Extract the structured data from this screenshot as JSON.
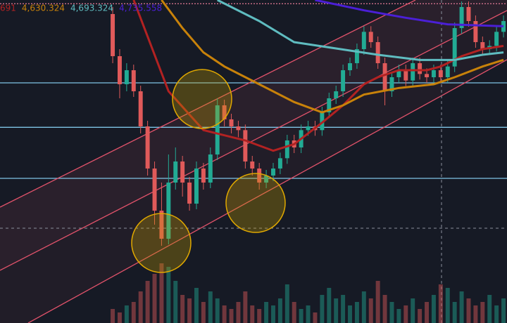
{
  "chart_data": {
    "type": "candlestick",
    "xlim": [
      -16.15,
      56.5
    ],
    "ylim": [
      4200,
      4890
    ],
    "vlim": [
      0,
      100
    ],
    "up_color": "#22ab94",
    "down_color": "#e05a5a",
    "candles": [
      [
        4860,
        4875,
        4755,
        4770
      ],
      [
        4770,
        4785,
        4680,
        4710
      ],
      [
        4710,
        4755,
        4695,
        4740
      ],
      [
        4740,
        4752,
        4683,
        4695
      ],
      [
        4695,
        4707,
        4605,
        4620
      ],
      [
        4620,
        4632,
        4515,
        4530
      ],
      [
        4530,
        4545,
        4410,
        4440
      ],
      [
        4440,
        4500,
        4365,
        4380
      ],
      [
        4380,
        4560,
        4368,
        4500
      ],
      [
        4500,
        4575,
        4485,
        4545
      ],
      [
        4545,
        4557,
        4470,
        4500
      ],
      [
        4500,
        4512,
        4440,
        4455
      ],
      [
        4455,
        4545,
        4443,
        4530
      ],
      [
        4530,
        4542,
        4485,
        4500
      ],
      [
        4500,
        4575,
        4488,
        4560
      ],
      [
        4560,
        4680,
        4548,
        4665
      ],
      [
        4665,
        4677,
        4620,
        4635
      ],
      [
        4635,
        4647,
        4605,
        4620
      ],
      [
        4620,
        4632,
        4597,
        4612
      ],
      [
        4612,
        4624,
        4530,
        4545
      ],
      [
        4545,
        4557,
        4515,
        4530
      ],
      [
        4530,
        4542,
        4485,
        4500
      ],
      [
        4500,
        4527,
        4488,
        4515
      ],
      [
        4515,
        4542,
        4503,
        4530
      ],
      [
        4530,
        4564,
        4518,
        4552
      ],
      [
        4552,
        4602,
        4540,
        4590
      ],
      [
        4590,
        4602,
        4563,
        4575
      ],
      [
        4575,
        4624,
        4563,
        4612
      ],
      [
        4612,
        4632,
        4600,
        4620
      ],
      [
        4620,
        4632,
        4600,
        4612
      ],
      [
        4612,
        4662,
        4600,
        4650
      ],
      [
        4650,
        4692,
        4638,
        4680
      ],
      [
        4680,
        4707,
        4668,
        4695
      ],
      [
        4695,
        4752,
        4683,
        4740
      ],
      [
        4740,
        4767,
        4728,
        4755
      ],
      [
        4755,
        4797,
        4743,
        4785
      ],
      [
        4785,
        4834,
        4773,
        4822
      ],
      [
        4822,
        4834,
        4788,
        4800
      ],
      [
        4800,
        4812,
        4743,
        4755
      ],
      [
        4755,
        4767,
        4665,
        4695
      ],
      [
        4695,
        4737,
        4683,
        4725
      ],
      [
        4725,
        4752,
        4713,
        4740
      ],
      [
        4740,
        4752,
        4706,
        4718
      ],
      [
        4718,
        4767,
        4706,
        4755
      ],
      [
        4755,
        4767,
        4720,
        4732
      ],
      [
        4732,
        4744,
        4713,
        4725
      ],
      [
        4725,
        4752,
        4713,
        4740
      ],
      [
        4740,
        4752,
        4713,
        4725
      ],
      [
        4725,
        4760,
        4713,
        4748
      ],
      [
        4748,
        4842,
        4736,
        4830
      ],
      [
        4830,
        4887,
        4818,
        4875
      ],
      [
        4875,
        4887,
        4833,
        4845
      ],
      [
        4845,
        4857,
        4788,
        4800
      ],
      [
        4800,
        4812,
        4773,
        4785
      ],
      [
        4785,
        4804,
        4773,
        4792
      ],
      [
        4792,
        4834,
        4780,
        4822
      ],
      [
        4822,
        4857,
        4810,
        4845
      ]
    ],
    "volume": [
      20,
      15,
      25,
      30,
      45,
      60,
      70,
      85,
      80,
      60,
      40,
      35,
      50,
      30,
      45,
      35,
      25,
      20,
      30,
      45,
      25,
      20,
      30,
      25,
      35,
      55,
      30,
      20,
      25,
      15,
      40,
      50,
      35,
      40,
      25,
      30,
      45,
      35,
      60,
      40,
      30,
      20,
      25,
      35,
      20,
      30,
      40,
      55,
      50,
      30,
      45,
      35,
      25,
      30,
      40,
      25,
      35
    ],
    "levels": [
      4882,
      4713,
      4618,
      4509
    ],
    "lines": [
      {
        "label": "691",
        "color": "#b22222",
        "x": [
          3,
          8,
          13,
          19,
          23,
          26,
          30,
          33,
          36,
          38,
          41,
          45,
          47,
          50,
          53,
          56
        ],
        "values": [
          4890,
          4695,
          4612,
          4590,
          4568,
          4582,
          4628,
          4665,
          4710,
          4725,
          4740,
          4740,
          4748,
          4770,
          4785,
          4792
        ]
      },
      {
        "label": "4,630.324",
        "color": "#c8820a",
        "x": [
          7,
          10,
          13,
          16,
          21,
          26,
          30,
          33,
          36,
          41,
          46,
          49,
          53,
          56
        ],
        "values": [
          4890,
          4830,
          4778,
          4748,
          4710,
          4672,
          4650,
          4665,
          4688,
          4702,
          4710,
          4725,
          4748,
          4762
        ]
      },
      {
        "label": "4,693.324",
        "color": "#5fbcc0",
        "x": [
          15,
          21,
          26,
          34,
          38,
          44,
          49,
          53,
          56
        ],
        "values": [
          4890,
          4845,
          4800,
          4782,
          4773,
          4762,
          4762,
          4773,
          4778
        ]
      },
      {
        "label": "4,735.558",
        "color": "#4b1fd6",
        "x": [
          29,
          36,
          42,
          48,
          56
        ],
        "values": [
          4890,
          4868,
          4852,
          4838,
          4834
        ]
      }
    ]
  }
}
